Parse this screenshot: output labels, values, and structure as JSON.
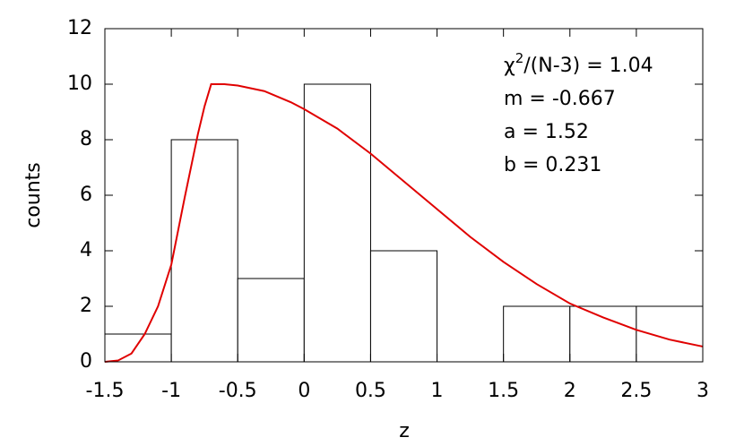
{
  "chart_data": {
    "type": "histogram",
    "xlabel": "z",
    "ylabel": "counts",
    "bins": [
      -1.5,
      -1,
      -0.5,
      0,
      0.5,
      1,
      1.5,
      2,
      2.5,
      3
    ],
    "counts": [
      1,
      8,
      3,
      10,
      4,
      0,
      2,
      2,
      2
    ],
    "bar_color": "#ffffff",
    "bar_edge": "#000000",
    "curve": {
      "color": "#e00000",
      "x": [
        -1.5,
        -1.4,
        -1.3,
        -1.2,
        -1.1,
        -1.0,
        -0.9,
        -0.8,
        -0.75,
        -0.7,
        -0.6,
        -0.5,
        -0.3,
        -0.1,
        0,
        0.25,
        0.5,
        0.75,
        1.0,
        1.25,
        1.5,
        1.75,
        2.0,
        2.25,
        2.5,
        2.75,
        3.0
      ],
      "values": [
        0,
        0.05,
        0.3,
        1.0,
        2.0,
        3.5,
        5.9,
        8.2,
        9.2,
        10,
        10,
        9.95,
        9.75,
        9.35,
        9.1,
        8.4,
        7.5,
        6.5,
        5.5,
        4.5,
        3.6,
        2.8,
        2.1,
        1.6,
        1.15,
        0.8,
        0.55
      ]
    },
    "annotations": [
      [
        "χ",
        "2",
        "/(N-3) = 1.04"
      ],
      [
        "m = -0.667"
      ],
      [
        "a = 1.52"
      ],
      [
        "b = 0.231"
      ]
    ],
    "xlim": [
      -1.5,
      3
    ],
    "ylim": [
      0,
      12
    ],
    "xticks": [
      -1.5,
      -1,
      -0.5,
      0,
      0.5,
      1,
      1.5,
      2,
      2.5,
      3
    ],
    "yticks": [
      0,
      2,
      4,
      6,
      8,
      10,
      12
    ],
    "grid": false
  }
}
